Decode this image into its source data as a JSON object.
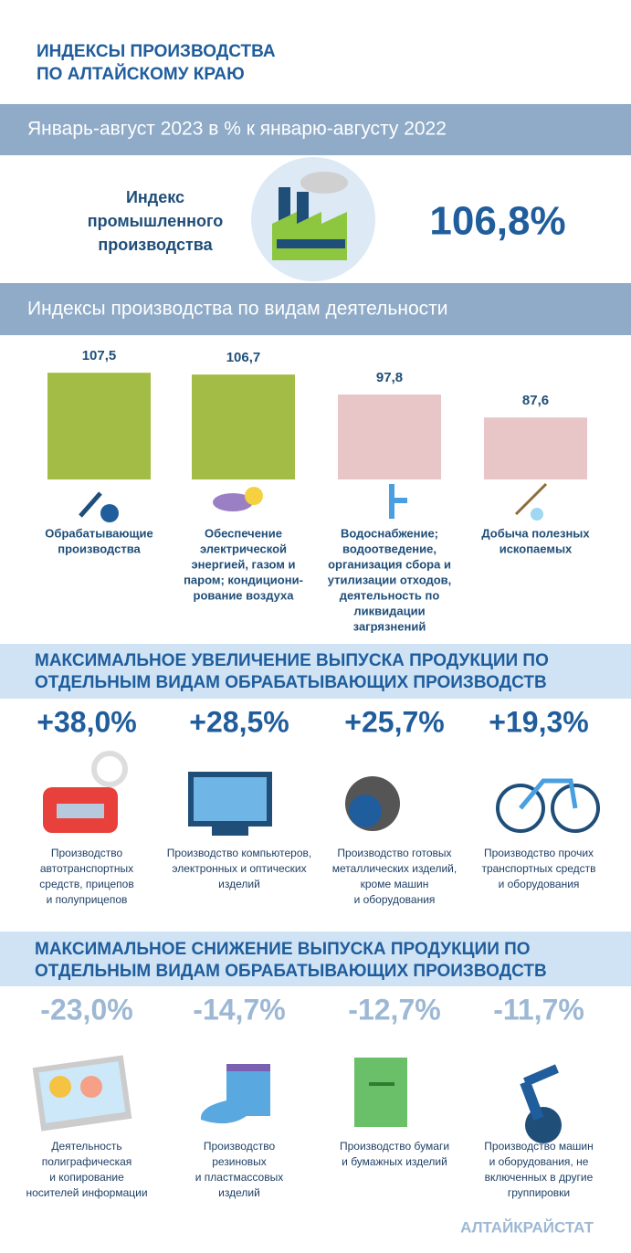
{
  "header": {
    "title": [
      "ИНДЕКСЫ ПРОИЗВОДСТВА",
      "ПО АЛТАЙСКОМУ КРАЮ"
    ]
  },
  "period": "Январь-август 2023  в % к январю-августу 2022",
  "index": {
    "label": [
      "Индекс",
      "промышленного",
      "производства"
    ],
    "value": "106,8%"
  },
  "chart_data": {
    "type": "bar",
    "title": "Индексы производства по видам деятельности",
    "categories": [
      [
        "Обрабатывающие",
        "производства"
      ],
      [
        "Обеспечение",
        "электрической",
        "энергией, газом и",
        "паром; кондициони-",
        "рование воздуха"
      ],
      [
        "Водоснабжение;",
        "водоотведение,",
        "организация сбора и",
        "утилизации отходов,",
        "деятельность по",
        "ликвидации",
        "загрязнений"
      ],
      [
        "Добыча полезных",
        "ископаемых"
      ]
    ],
    "values": [
      107.5,
      106.7,
      97.8,
      87.6
    ],
    "value_labels": [
      "107,5",
      "106,7",
      "97,8",
      "87,6"
    ],
    "colors": [
      "#a2bc45",
      "#a2bc45",
      "#e8c6c8",
      "#e8c6c8"
    ],
    "ylim": [
      60,
      110
    ]
  },
  "increase": {
    "title": [
      "МАКСИМАЛЬНОЕ УВЕЛИЧЕНИЕ ВЫПУСКА ПРОДУКЦИИ ПО",
      "ОТДЕЛЬНЫМ ВИДАМ ОБРАБАТЫВАЮЩИХ  ПРОИЗВОДСТВ"
    ],
    "items": [
      {
        "value": "+38,0%",
        "label": [
          "Производство",
          "автотранспортных",
          "средств, прицепов",
          "и полуприцепов"
        ]
      },
      {
        "value": "+28,5%",
        "label": [
          "Производство компьютеров,",
          "электронных и оптических",
          "изделий"
        ]
      },
      {
        "value": "+25,7%",
        "label": [
          "Производство готовых",
          "металлических изделий,",
          "кроме машин",
          "и оборудования"
        ]
      },
      {
        "value": "+19,3%",
        "label": [
          "Производство прочих",
          "транспортных средств",
          "и оборудования"
        ]
      }
    ]
  },
  "decrease": {
    "title": [
      "МАКСИМАЛЬНОЕ СНИЖЕНИЕ ВЫПУСКА ПРОДУКЦИИ ПО",
      "ОТДЕЛЬНЫМ ВИДАМ ОБРАБАТЫВАЮЩИХ  ПРОИЗВОДСТВ"
    ],
    "items": [
      {
        "value": "-23,0%",
        "label": [
          "Деятельность",
          "полиграфическая",
          "и копирование",
          "носителей информации"
        ]
      },
      {
        "value": "-14,7%",
        "label": [
          "Производство",
          "резиновых",
          "и пластмассовых",
          "изделий"
        ]
      },
      {
        "value": "-12,7%",
        "label": [
          "Производство бумаги",
          "и бумажных изделий"
        ]
      },
      {
        "value": "-11,7%",
        "label": [
          "Производство машин",
          "и оборудования, не",
          "включенных в другие",
          "группировки"
        ]
      }
    ]
  },
  "footer": "АЛТАЙКРАЙСТАТ"
}
